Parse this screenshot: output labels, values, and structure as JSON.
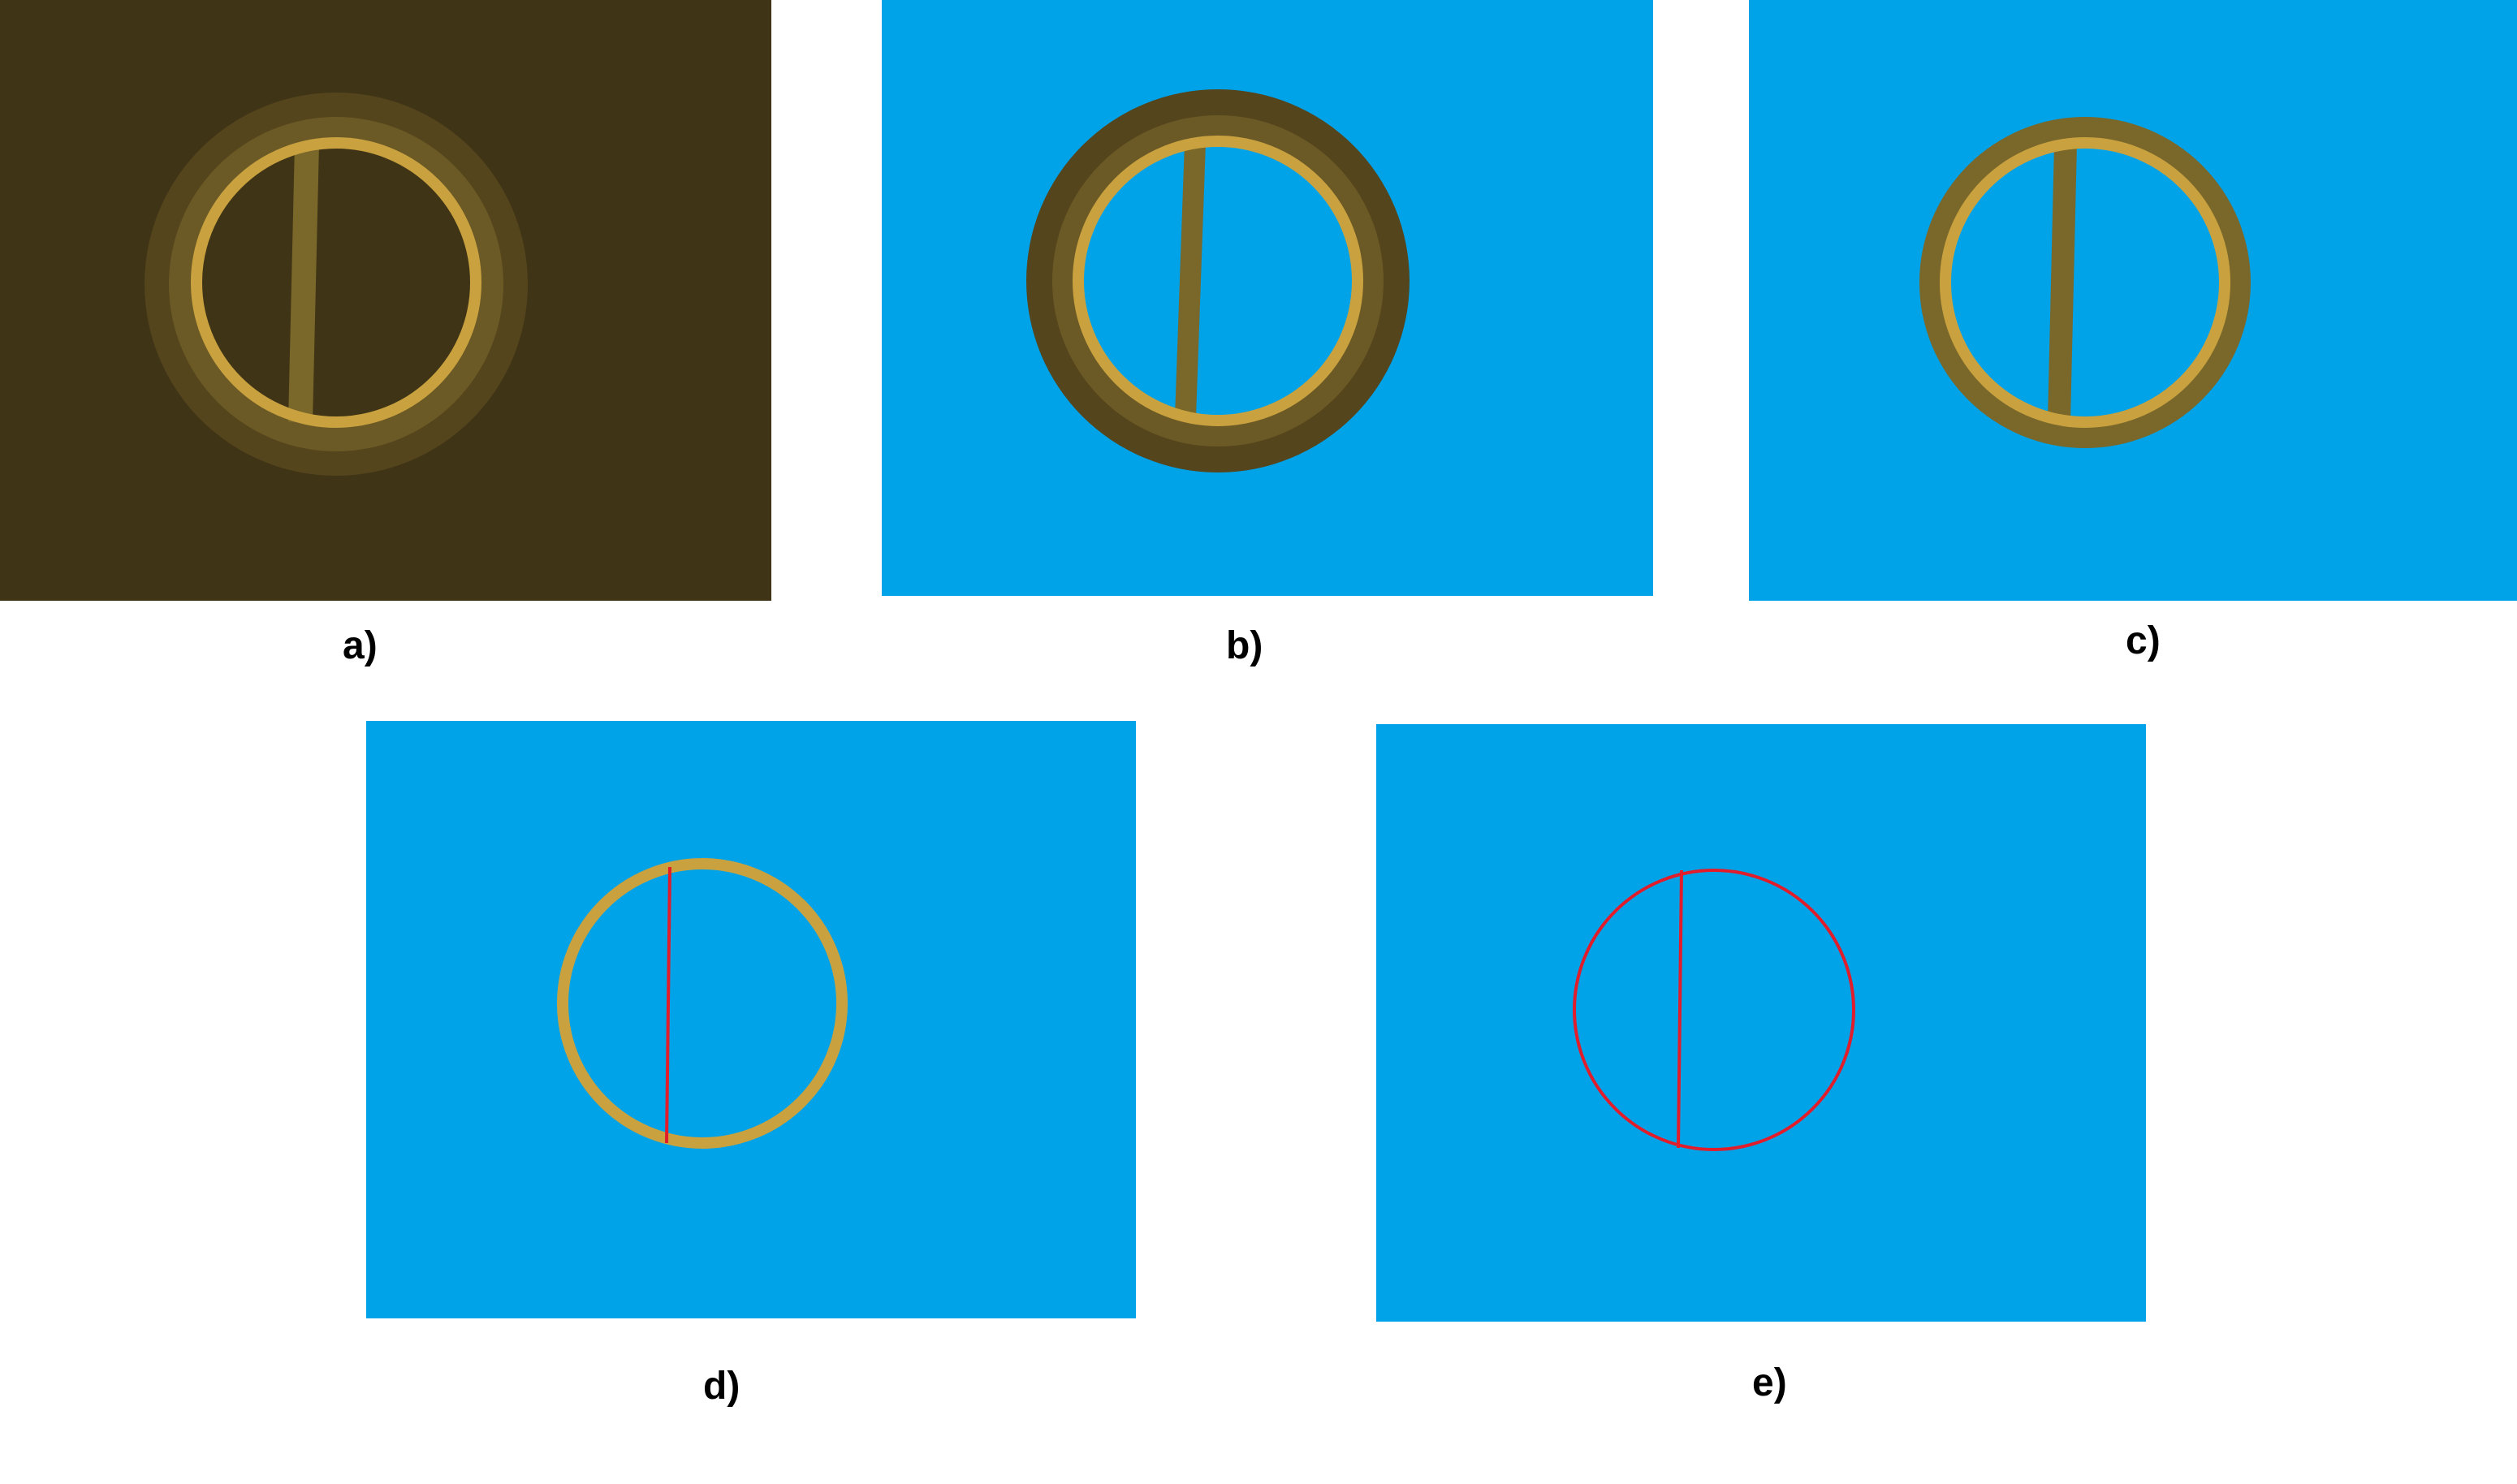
{
  "colors": {
    "dark_background": "#3f3416",
    "blue_background": "#00a2e8",
    "gold_ring": "#c9a23f",
    "olive_bar": "#7a672a",
    "halo_outer": "#54451c",
    "halo_mid": "#6c5a26",
    "red_line": "#e21d2b"
  },
  "captions": {
    "a": "a)",
    "b": "b)",
    "c": "c)",
    "d": "d)",
    "e": "e)"
  }
}
